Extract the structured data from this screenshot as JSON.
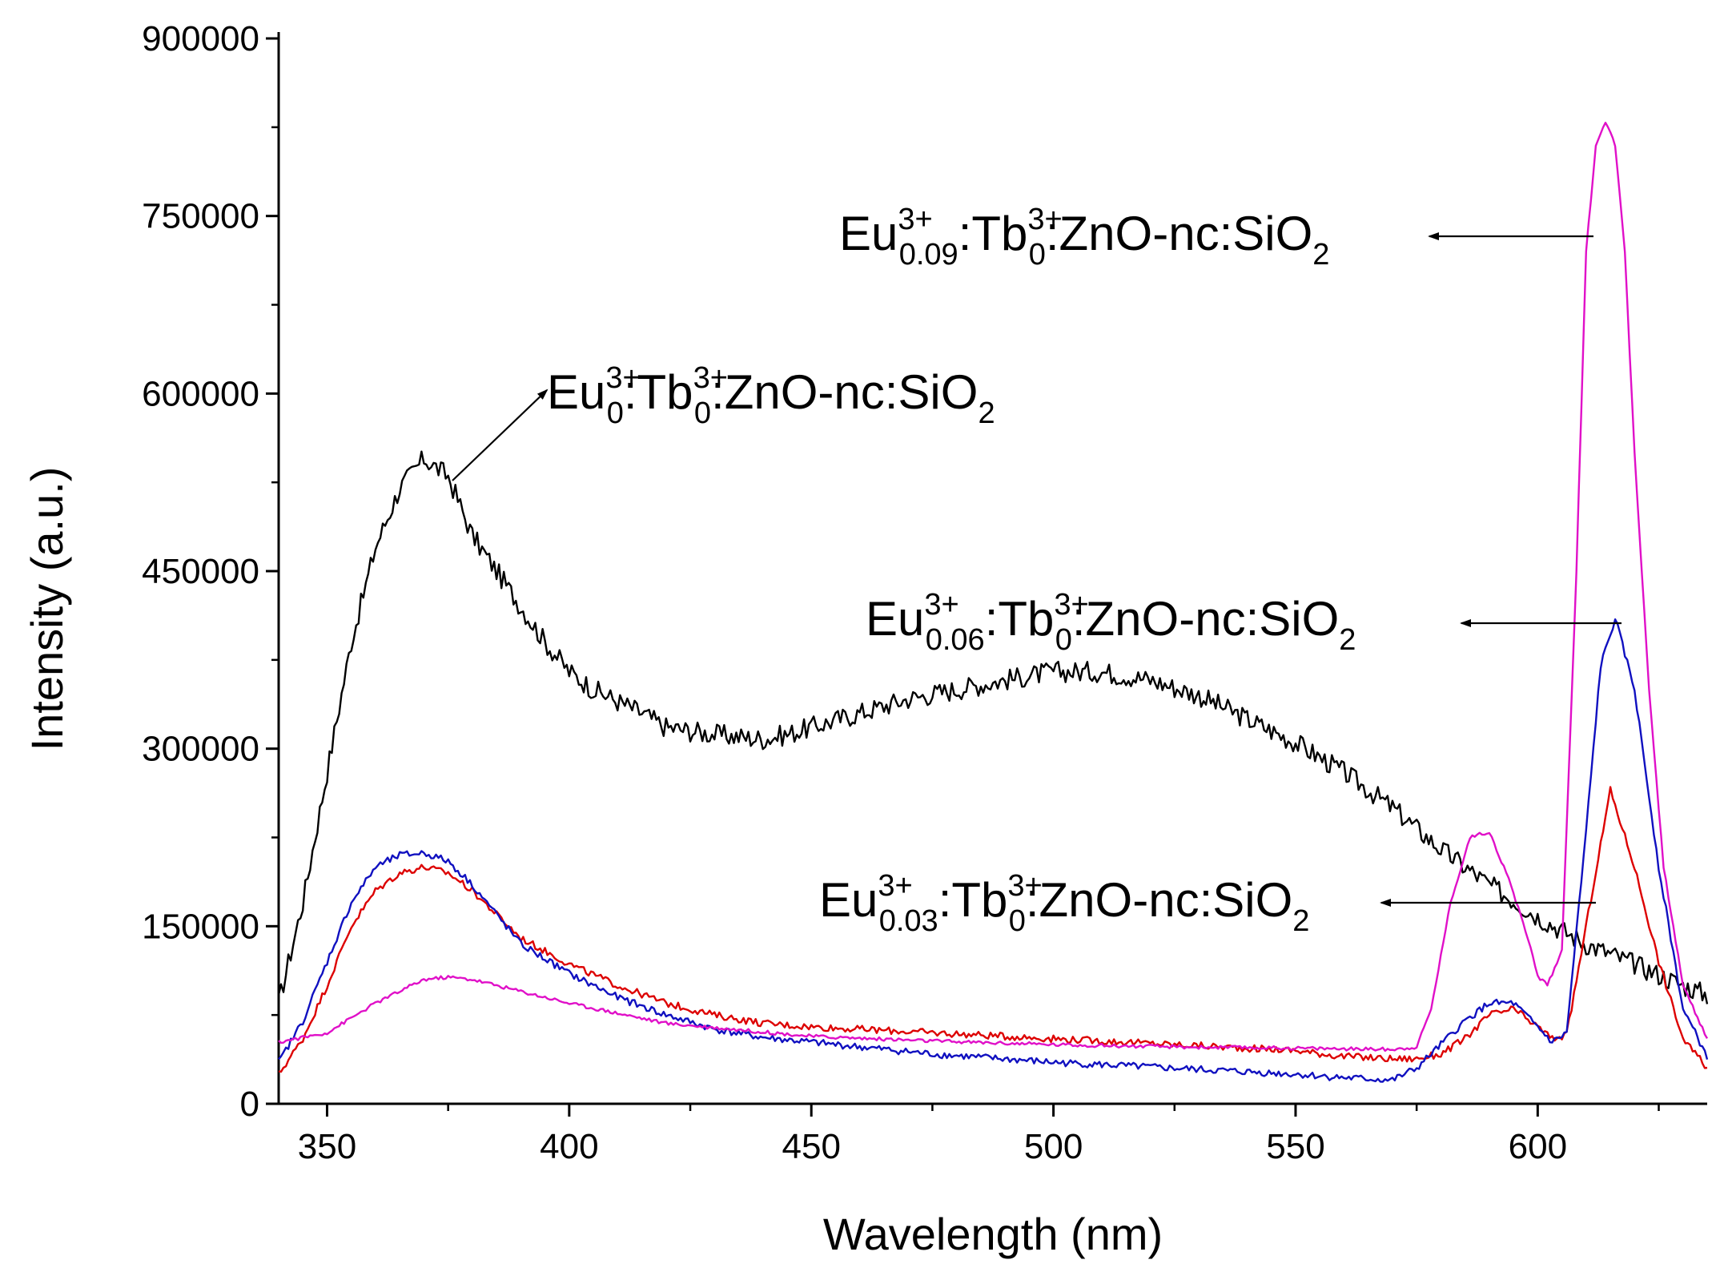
{
  "chart_data": {
    "type": "line",
    "title": "",
    "xlabel": "Wavelength (nm)",
    "ylabel": "Intensity (a.u.)",
    "xlim": [
      340,
      635
    ],
    "ylim": [
      0,
      900000
    ],
    "xticks": [
      350,
      400,
      450,
      500,
      550,
      600
    ],
    "xtick_labels": [
      "350",
      "400",
      "450",
      "500",
      "550",
      "600"
    ],
    "yticks": [
      0,
      150000,
      300000,
      450000,
      600000,
      750000,
      900000
    ],
    "ytick_labels": [
      "0",
      "150000",
      "300000",
      "450000",
      "600000",
      "750000",
      "900000"
    ],
    "grid": false,
    "series": [
      {
        "name": "Eu0:Tb0:ZnO-nc:SiO2",
        "color": "#000000",
        "x": [
          340,
          345,
          350,
          355,
          360,
          365,
          370,
          375,
          380,
          385,
          390,
          395,
          400,
          405,
          410,
          415,
          420,
          425,
          430,
          435,
          440,
          445,
          450,
          460,
          470,
          480,
          490,
          500,
          510,
          520,
          530,
          540,
          550,
          560,
          570,
          580,
          590,
          600,
          610,
          620,
          630,
          635
        ],
        "y": [
          85000,
          170000,
          280000,
          390000,
          470000,
          520000,
          545000,
          530000,
          480000,
          450000,
          420000,
          390000,
          365000,
          350000,
          340000,
          330000,
          318000,
          315000,
          312000,
          310000,
          308000,
          312000,
          318000,
          330000,
          342000,
          350000,
          358000,
          365000,
          365000,
          358000,
          345000,
          325000,
          305000,
          280000,
          250000,
          215000,
          185000,
          158000,
          135000,
          118000,
          100000,
          92000
        ]
      },
      {
        "name": "Eu0.03:Tb0:ZnO-nc:SiO2",
        "color": "#dd0000",
        "x": [
          340,
          345,
          350,
          355,
          360,
          365,
          370,
          375,
          380,
          385,
          390,
          400,
          410,
          420,
          430,
          440,
          450,
          475,
          500,
          525,
          550,
          560,
          570,
          575,
          580,
          585,
          590,
          595,
          600,
          603,
          606,
          610,
          615,
          620,
          625,
          630,
          635
        ],
        "y": [
          25000,
          55000,
          100000,
          150000,
          180000,
          195000,
          200000,
          195000,
          180000,
          160000,
          140000,
          118000,
          100000,
          85000,
          75000,
          68000,
          65000,
          60000,
          55000,
          50000,
          45000,
          40000,
          38000,
          38000,
          42000,
          55000,
          75000,
          80000,
          65000,
          55000,
          58000,
          150000,
          265000,
          200000,
          120000,
          55000,
          30000
        ]
      },
      {
        "name": "Eu0.06:Tb0:ZnO-nc:SiO2",
        "color": "#1010c0",
        "x": [
          340,
          345,
          350,
          355,
          360,
          365,
          370,
          375,
          380,
          385,
          390,
          400,
          410,
          420,
          430,
          440,
          450,
          475,
          500,
          525,
          550,
          560,
          570,
          575,
          580,
          585,
          590,
          595,
          600,
          603,
          606,
          610,
          613,
          616,
          620,
          625,
          630,
          635
        ],
        "y": [
          35000,
          70000,
          120000,
          170000,
          200000,
          210000,
          212000,
          205000,
          185000,
          160000,
          135000,
          110000,
          90000,
          75000,
          63000,
          56000,
          52000,
          42000,
          35000,
          30000,
          25000,
          22000,
          20000,
          30000,
          50000,
          70000,
          85000,
          85000,
          65000,
          52000,
          60000,
          230000,
          370000,
          410000,
          350000,
          200000,
          80000,
          40000
        ]
      },
      {
        "name": "Eu0.09:Tb0:ZnO-nc:SiO2",
        "color": "#e010c8",
        "x": [
          340,
          350,
          360,
          370,
          375,
          380,
          390,
          400,
          420,
          450,
          475,
          500,
          525,
          550,
          570,
          575,
          578,
          582,
          586,
          590,
          594,
          598,
          600,
          602,
          605,
          608,
          610,
          612,
          614,
          616,
          618,
          620,
          623,
          626,
          630,
          635
        ],
        "y": [
          52000,
          60000,
          85000,
          105000,
          107000,
          105000,
          95000,
          85000,
          68000,
          57000,
          53000,
          50000,
          48000,
          47000,
          46000,
          48000,
          80000,
          170000,
          225000,
          230000,
          190000,
          140000,
          108000,
          100000,
          130000,
          450000,
          720000,
          810000,
          830000,
          810000,
          720000,
          550000,
          350000,
          200000,
          100000,
          55000
        ]
      }
    ],
    "annotations": [
      {
        "series": 0,
        "text": "Eu0:Tb0:ZnO-nc:SiO2",
        "base": "Eu",
        "sup1": "3+",
        "sub1": "0",
        "mid": ":Tb",
        "sup2": "3+",
        "sub2": "0",
        "tail": ":ZnO-nc:SiO",
        "sub3": "2",
        "label_at": "upper-left"
      },
      {
        "series": 3,
        "text": "Eu0.09:Tb0:ZnO-nc:SiO2",
        "base": "Eu",
        "sup1": "3+",
        "sub1": "0.09",
        "mid": ":Tb",
        "sup2": "3+",
        "sub2": "0",
        "tail": ":ZnO-nc:SiO",
        "sub3": "2",
        "label_at": "top-right"
      },
      {
        "series": 2,
        "text": "Eu0.06:Tb0:ZnO-nc:SiO2",
        "base": "Eu",
        "sup1": "3+",
        "sub1": "0.06",
        "mid": ":Tb",
        "sup2": "3+",
        "sub2": "0",
        "tail": ":ZnO-nc:SiO",
        "sub3": "2",
        "label_at": "middle-right"
      },
      {
        "series": 1,
        "text": "Eu0.03:Tb0:ZnO-nc:SiO2",
        "base": "Eu",
        "sup1": "3+",
        "sub1": "0.03",
        "mid": ":Tb",
        "sup2": "3+",
        "sub2": "0",
        "tail": ":ZnO-nc:SiO",
        "sub3": "2",
        "label_at": "lower-right"
      }
    ]
  }
}
